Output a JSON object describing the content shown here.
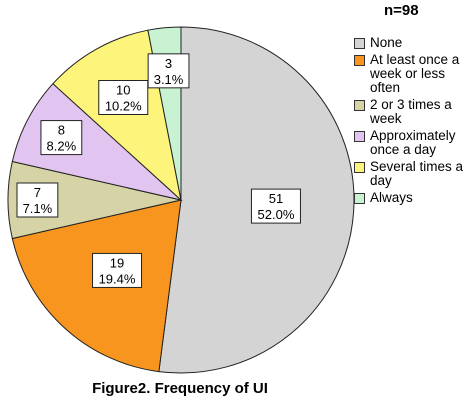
{
  "header": {
    "n_label": "n=98"
  },
  "caption": "Figure2. Frequency of UI",
  "chart_data": {
    "type": "pie",
    "categories": [
      "None",
      "At least once a week or less often",
      "2 or 3 times a week",
      "Approximately once a day",
      "Several times a day",
      "Always"
    ],
    "values": [
      51,
      19,
      7,
      8,
      10,
      3
    ],
    "percent_labels": [
      "52.0%",
      "19.4%",
      "7.1%",
      "8.2%",
      "10.2%",
      "3.1%"
    ],
    "colors": [
      "#d4d4d4",
      "#f7951e",
      "#d6d3a6",
      "#e2c4f0",
      "#fdf57b",
      "#c8f2d2"
    ],
    "start": "12 o'clock",
    "direction": "clockwise",
    "legend": "right"
  }
}
